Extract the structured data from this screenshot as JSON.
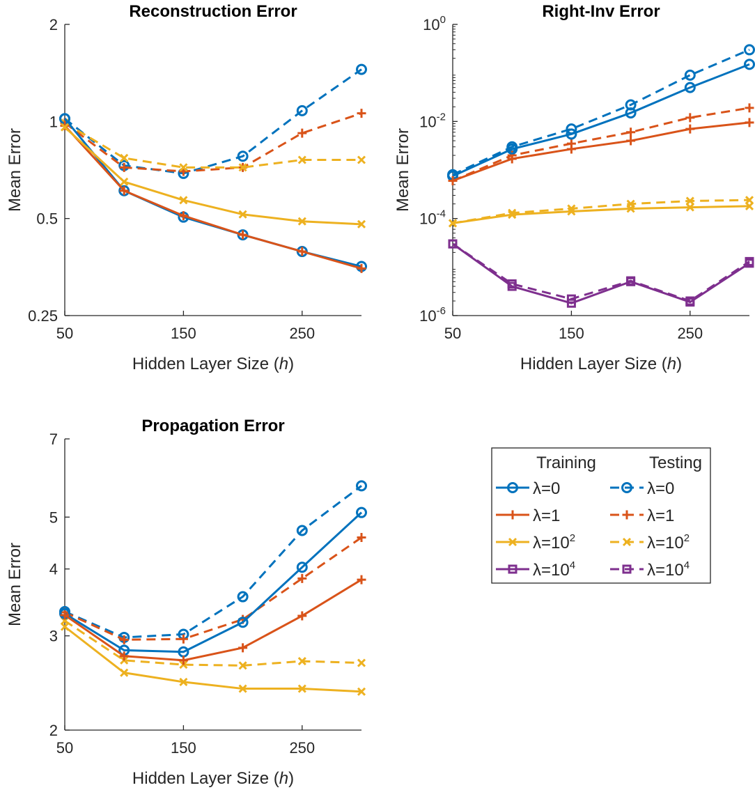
{
  "chart_data": [
    {
      "type": "line",
      "title": "Reconstruction Error",
      "xlabel": "Hidden Layer Size (h)",
      "ylabel": "Mean Error",
      "xlim": [
        50,
        300
      ],
      "ylim": [
        0.25,
        2
      ],
      "yscale": "log",
      "xticks": [
        "50",
        "150",
        "250"
      ],
      "yticks": [
        "0.25",
        "0.5",
        "1",
        "2"
      ],
      "x": [
        50,
        100,
        150,
        200,
        250,
        300
      ],
      "series": [
        {
          "name": "λ=0 Training",
          "values": [
            1.02,
            0.61,
            0.505,
            0.445,
            0.395,
            0.355
          ]
        },
        {
          "name": "λ=1 Training",
          "values": [
            0.97,
            0.61,
            0.51,
            0.445,
            0.395,
            0.35
          ]
        },
        {
          "name": "λ=10² Training",
          "values": [
            0.96,
            0.65,
            0.57,
            0.515,
            0.49,
            0.48
          ]
        },
        {
          "name": "λ=0 Testing",
          "values": [
            1.02,
            0.73,
            0.69,
            0.78,
            1.08,
            1.45
          ]
        },
        {
          "name": "λ=1 Testing",
          "values": [
            0.99,
            0.72,
            0.7,
            0.72,
            0.92,
            1.06
          ]
        },
        {
          "name": "λ=10² Testing",
          "values": [
            0.99,
            0.77,
            0.72,
            0.72,
            0.76,
            0.76
          ]
        }
      ]
    },
    {
      "type": "line",
      "title": "Right-Inv Error",
      "xlabel": "Hidden Layer Size (h)",
      "ylabel": "Mean Error",
      "xlim": [
        50,
        300
      ],
      "ylim": [
        1e-06,
        1
      ],
      "yscale": "log",
      "xticks": [
        "50",
        "150",
        "250"
      ],
      "yticks": [
        "10^-6",
        "10^-4",
        "10^-2",
        "10^0"
      ],
      "x": [
        50,
        100,
        150,
        200,
        250,
        300
      ],
      "series": [
        {
          "name": "λ=0 Training",
          "values": [
            0.00075,
            0.0027,
            0.0055,
            0.015,
            0.05,
            0.15
          ]
        },
        {
          "name": "λ=1 Training",
          "values": [
            0.0006,
            0.0017,
            0.0027,
            0.004,
            0.007,
            0.0095
          ]
        },
        {
          "name": "λ=10² Training",
          "values": [
            8e-05,
            0.00012,
            0.00014,
            0.00016,
            0.00017,
            0.00018
          ]
        },
        {
          "name": "λ=10⁴ Training",
          "values": [
            3e-05,
            4e-06,
            1.8e-06,
            5e-06,
            1.9e-06,
            1.2e-05
          ]
        },
        {
          "name": "λ=0 Testing",
          "values": [
            0.0008,
            0.003,
            0.007,
            0.022,
            0.09,
            0.3
          ]
        },
        {
          "name": "λ=1 Testing",
          "values": [
            0.0006,
            0.002,
            0.0035,
            0.006,
            0.012,
            0.019
          ]
        },
        {
          "name": "λ=10² Testing",
          "values": [
            8e-05,
            0.00013,
            0.00016,
            0.0002,
            0.00023,
            0.00024
          ]
        },
        {
          "name": "λ=10⁴ Testing",
          "values": [
            3e-05,
            4.5e-06,
            2.2e-06,
            5.2e-06,
            2e-06,
            1.3e-05
          ]
        }
      ]
    },
    {
      "type": "line",
      "title": "Propagation Error",
      "xlabel": "Hidden Layer Size (h)",
      "ylabel": "Mean Error",
      "xlim": [
        50,
        300
      ],
      "ylim": [
        2,
        7
      ],
      "yscale": "log",
      "xticks": [
        "50",
        "150",
        "250"
      ],
      "yticks": [
        "2",
        "3",
        "4",
        "5",
        "7"
      ],
      "x": [
        50,
        100,
        150,
        200,
        250,
        300
      ],
      "series": [
        {
          "name": "λ=0 Training",
          "values": [
            3.3,
            2.82,
            2.8,
            3.18,
            4.03,
            5.1
          ]
        },
        {
          "name": "λ=1 Training",
          "values": [
            3.28,
            2.75,
            2.7,
            2.85,
            3.27,
            3.82
          ]
        },
        {
          "name": "λ=10² Training",
          "values": [
            3.12,
            2.56,
            2.46,
            2.39,
            2.39,
            2.36
          ]
        },
        {
          "name": "λ=0 Testing",
          "values": [
            3.33,
            2.98,
            3.02,
            3.55,
            4.72,
            5.72
          ]
        },
        {
          "name": "λ=1 Testing",
          "values": [
            3.32,
            2.95,
            2.96,
            3.22,
            3.84,
            4.58
          ]
        },
        {
          "name": "λ=10² Testing",
          "values": [
            3.2,
            2.7,
            2.65,
            2.64,
            2.69,
            2.67
          ]
        }
      ]
    }
  ],
  "legend": {
    "header_training": "Training",
    "header_testing": "Testing",
    "entries": [
      {
        "label": "λ=0",
        "color": "#0072BD",
        "marker": "circle"
      },
      {
        "label": "λ=1",
        "color": "#D95319",
        "marker": "plus"
      },
      {
        "label": "λ=10^2",
        "color": "#EDB120",
        "marker": "x"
      },
      {
        "label": "λ=10^4",
        "color": "#7E2F8E",
        "marker": "square"
      }
    ]
  },
  "colors": {
    "lambda0": "#0072BD",
    "lambda1": "#D95319",
    "lambda100": "#EDB120",
    "lambda10000": "#7E2F8E",
    "axis": "#262626"
  }
}
